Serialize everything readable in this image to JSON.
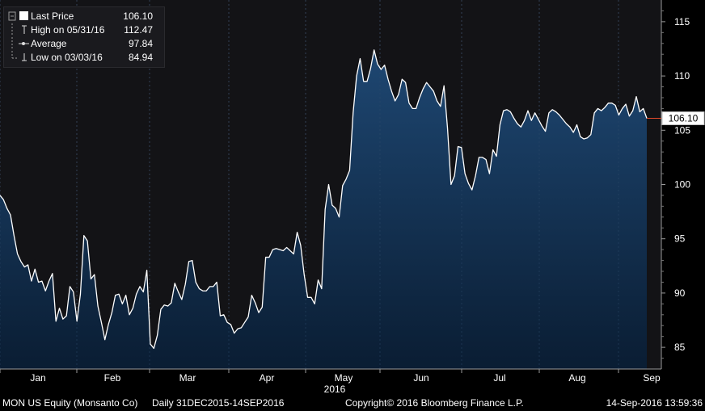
{
  "legend": {
    "items": [
      {
        "label": "Last Price",
        "value": "106.10",
        "icon": "filled-square-icon"
      },
      {
        "label": "High on 05/31/16",
        "value": "112.47",
        "icon": "high-marker-icon"
      },
      {
        "label": "Average",
        "value": "97.84",
        "icon": "average-line-icon"
      },
      {
        "label": "Low on 03/03/16",
        "value": "84.94",
        "icon": "low-marker-icon"
      }
    ]
  },
  "footer": {
    "security": "MON US Equity (Monsanto Co)",
    "range": "Daily 31DEC2015-14SEP2016",
    "copyright": "Copyright© 2016 Bloomberg Finance L.P.",
    "timestamp": "14-Sep-2016 13:59:36"
  },
  "colors": {
    "background": "#000000",
    "plot_background": "#131316",
    "area_top": "#1e4772",
    "area_bottom": "#0a1d33",
    "line": "#ffffff",
    "last_price_marker": "#e34a2b"
  },
  "chart_data": {
    "type": "area",
    "title": "",
    "xlabel": "",
    "ylabel": "",
    "ylim": [
      83,
      117
    ],
    "y_ticks": [
      85,
      90,
      95,
      100,
      105,
      110,
      115
    ],
    "x_ticks": [
      "Jan",
      "Feb",
      "Mar",
      "Apr",
      "May",
      "Jun",
      "Jul",
      "Aug",
      "Sep"
    ],
    "x_year_label": "2016",
    "last_price_label": "106.10",
    "grid": "vertical dashed at month boundaries",
    "y_axis_side": "right",
    "series": [
      {
        "values": [
          99.0,
          98.6,
          97.8,
          97.2,
          95.3,
          93.6,
          92.9,
          92.4,
          92.6,
          91.1,
          92.2,
          91.0,
          91.1,
          90.2,
          91.1,
          91.8,
          87.4,
          88.6,
          87.6,
          87.9,
          90.6,
          90.1,
          87.4,
          89.9,
          95.3,
          94.8,
          91.3,
          91.7,
          88.8,
          87.3,
          85.7,
          87.1,
          88.2,
          89.8,
          89.9,
          89.0,
          89.8,
          88.0,
          88.6,
          89.9,
          90.6,
          90.1,
          92.1,
          85.3,
          84.9,
          86.1,
          88.5,
          88.9,
          88.8,
          89.1,
          90.9,
          90.1,
          89.4,
          90.8,
          92.9,
          93.0,
          91.0,
          90.4,
          90.2,
          90.2,
          90.6,
          90.6,
          91.0,
          87.9,
          88.0,
          87.3,
          87.1,
          86.3,
          86.7,
          86.8,
          87.3,
          87.8,
          89.8,
          89.1,
          88.2,
          88.7,
          93.3,
          93.3,
          94.0,
          94.1,
          94.0,
          93.9,
          94.2,
          93.9,
          93.6,
          95.6,
          94.4,
          91.7,
          89.6,
          89.6,
          89.0,
          91.2,
          90.4,
          97.7,
          100.0,
          98.1,
          97.8,
          97.0,
          99.9,
          100.5,
          101.3,
          106.6,
          110.0,
          111.6,
          109.5,
          109.5,
          110.7,
          112.4,
          111.1,
          110.6,
          111.0,
          109.7,
          108.6,
          107.7,
          108.3,
          109.7,
          109.4,
          107.5,
          107.0,
          107.0,
          108.0,
          108.8,
          109.4,
          109.0,
          108.6,
          107.7,
          107.2,
          109.1,
          105.2,
          100.0,
          100.8,
          103.5,
          103.4,
          101.0,
          100.1,
          99.5,
          100.8,
          102.5,
          102.5,
          102.3,
          101.0,
          103.2,
          102.6,
          105.5,
          106.8,
          106.9,
          106.7,
          106.1,
          105.6,
          105.3,
          105.9,
          106.8,
          105.9,
          106.6,
          106.0,
          105.4,
          104.9,
          106.6,
          106.9,
          106.7,
          106.4,
          106.0,
          105.6,
          105.3,
          104.8,
          105.5,
          104.4,
          104.2,
          104.3,
          104.6,
          106.6,
          107.0,
          106.8,
          107.1,
          107.5,
          107.5,
          107.3,
          106.4,
          107.0,
          107.4,
          106.3,
          106.8,
          108.1,
          106.7,
          107.0,
          106.1
        ]
      }
    ]
  }
}
